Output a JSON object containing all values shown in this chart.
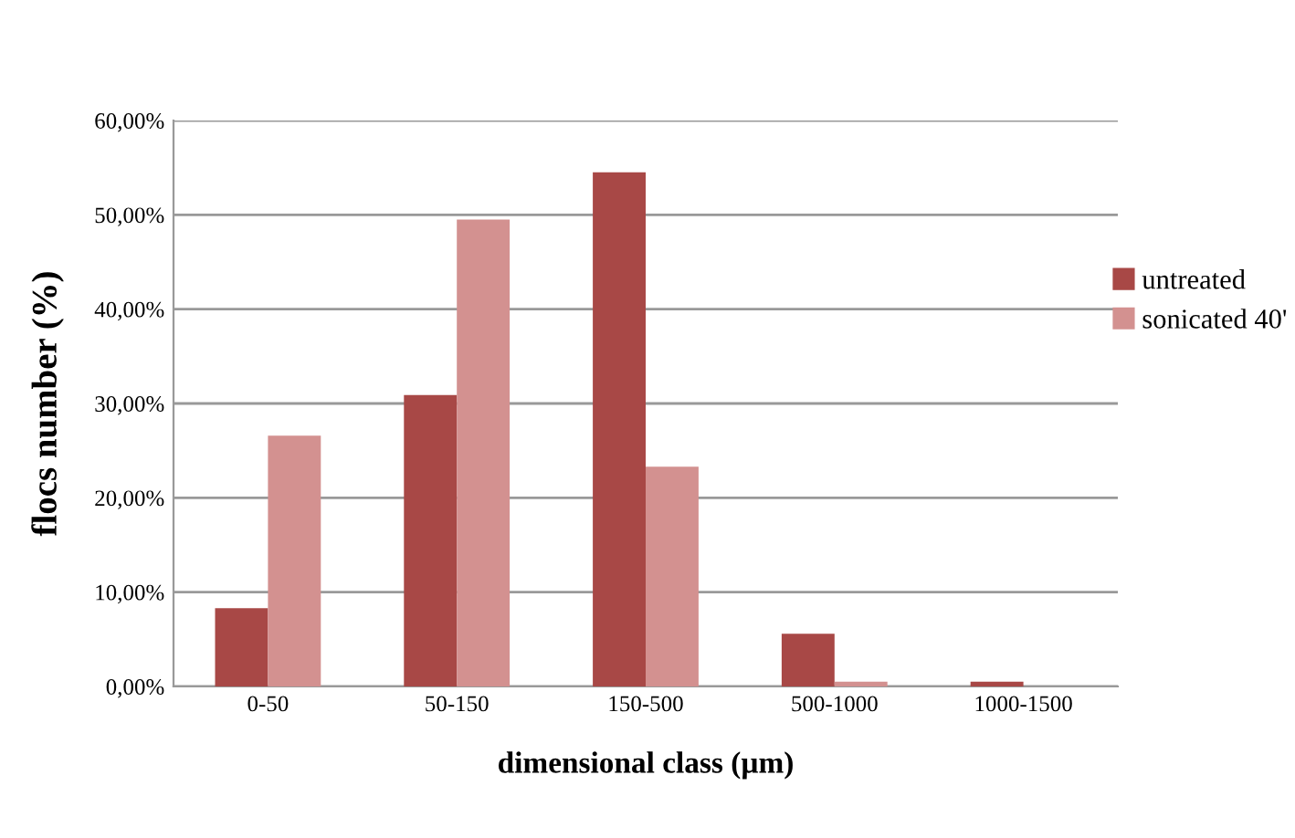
{
  "chart_data": {
    "type": "bar",
    "xlabel": "dimensional class (µm)",
    "ylabel": "flocs number (%)",
    "categories": [
      "0-50",
      "50-150",
      "150-500",
      "500-1000",
      "1000-1500"
    ],
    "series": [
      {
        "name": "untreated",
        "color": "#a84846",
        "values": [
          8.3,
          30.9,
          54.5,
          5.6,
          0.5
        ]
      },
      {
        "name": "sonicated 40'",
        "color": "#d39190",
        "values": [
          26.6,
          49.5,
          23.3,
          0.5,
          null
        ]
      }
    ],
    "ylim": [
      0,
      60
    ],
    "yticks": [
      {
        "value": 0,
        "label": "0,00%"
      },
      {
        "value": 10,
        "label": "10,00%"
      },
      {
        "value": 20,
        "label": "20,00%"
      },
      {
        "value": 30,
        "label": "30,00%"
      },
      {
        "value": 40,
        "label": "40,00%"
      },
      {
        "value": 50,
        "label": "50,00%"
      },
      {
        "value": 60,
        "label": "60,00%"
      }
    ],
    "grid": "y",
    "legend": "right"
  }
}
